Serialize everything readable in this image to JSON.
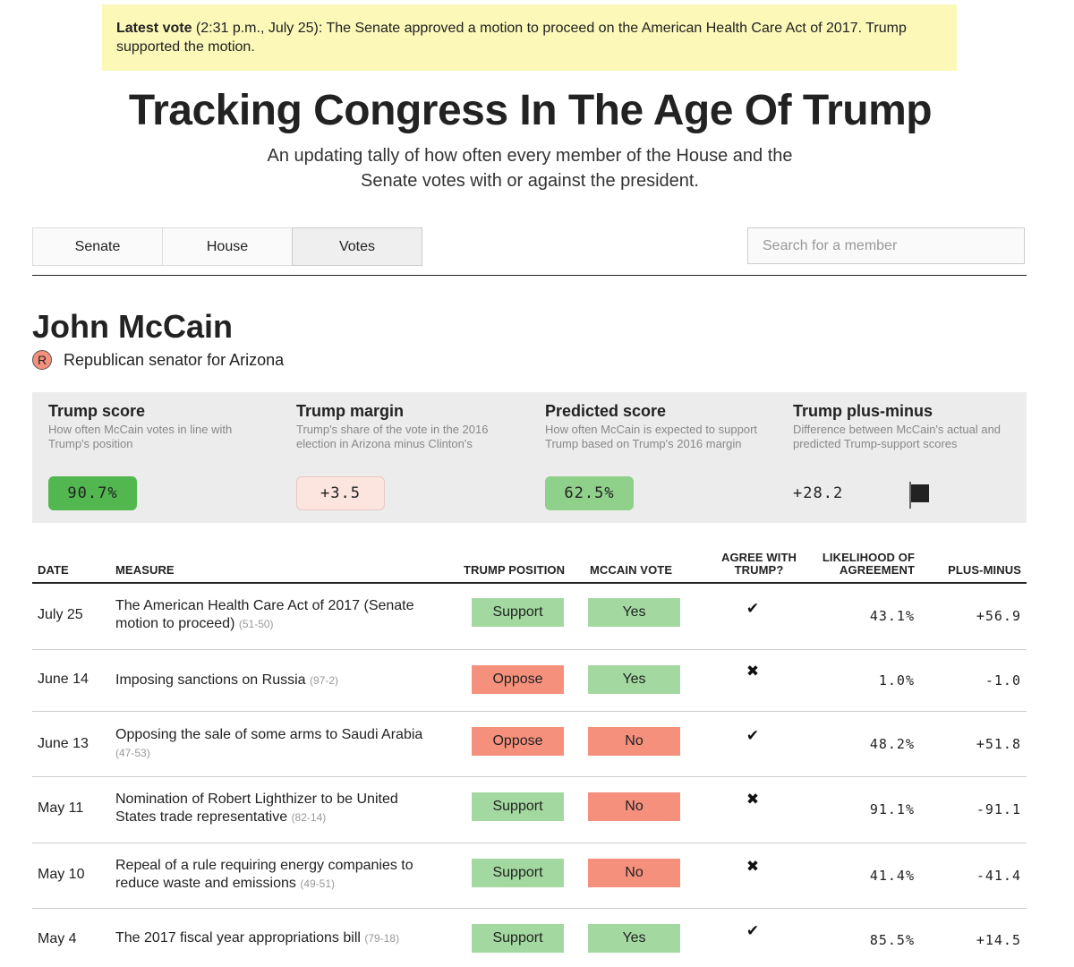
{
  "banner": {
    "label": "Latest vote",
    "text": " (2:31 p.m., July 25): The Senate approved a motion to proceed on the American Health Care Act of 2017. Trump supported the motion."
  },
  "page": {
    "title": "Tracking Congress In The Age Of Trump",
    "subtitle": "An updating tally of how often every member of the House and the Senate votes with or against the president."
  },
  "tabs": [
    {
      "label": "Senate",
      "active": false
    },
    {
      "label": "House",
      "active": false
    },
    {
      "label": "Votes",
      "active": true
    }
  ],
  "search": {
    "placeholder": "Search for a member",
    "value": ""
  },
  "member": {
    "name": "John McCain",
    "party_letter": "R",
    "description": "Republican senator for Arizona"
  },
  "scores": {
    "trump_score": {
      "title": "Trump score",
      "desc": "How often McCain votes in line with Trump's position",
      "value": "90.7%"
    },
    "trump_margin": {
      "title": "Trump margin",
      "desc": "Trump's share of the vote in the 2016 election in Arizona minus Clinton's",
      "value": "+3.5"
    },
    "predicted_score": {
      "title": "Predicted score",
      "desc": "How often McCain is expected to support Trump based on Trump's 2016 margin",
      "value": "62.5%"
    },
    "plus_minus": {
      "title": "Trump plus-minus",
      "desc": "Difference between McCain's actual and predicted Trump-support scores",
      "value": "+28.2"
    }
  },
  "colors": {
    "banner": "#fbf8b8",
    "support_green": "#a3d9a0",
    "oppose_red": "#f5907c",
    "score_green_dark": "#52b74f",
    "score_green_light": "#8fd18a",
    "margin_pink": "#fce4df",
    "panel_gray": "#ececec"
  },
  "table": {
    "headers": {
      "date": "Date",
      "measure": "Measure",
      "trump_position": "Trump position",
      "vote": "McCain vote",
      "agree_line1": "Agree with",
      "agree_line2": "Trump?",
      "likelihood_line1": "Likelihood of",
      "likelihood_line2": "agreement",
      "plus_minus": "Plus-minus"
    },
    "rows": [
      {
        "date": "July 25",
        "measure": "The American Health Care Act of 2017 (Senate motion to proceed)",
        "tally": "(51-50)",
        "trump_position": "Support",
        "vote": "Yes",
        "agree": "✔",
        "likelihood": "43.1%",
        "plus_minus": "+56.9"
      },
      {
        "date": "June 14",
        "measure": "Imposing sanctions on Russia",
        "tally": "(97-2)",
        "trump_position": "Oppose",
        "vote": "Yes",
        "agree": "✖",
        "likelihood": "1.0%",
        "plus_minus": "-1.0"
      },
      {
        "date": "June 13",
        "measure": "Opposing the sale of some arms to Saudi Arabia",
        "tally": "(47-53)",
        "trump_position": "Oppose",
        "vote": "No",
        "agree": "✔",
        "likelihood": "48.2%",
        "plus_minus": "+51.8"
      },
      {
        "date": "May 11",
        "measure": "Nomination of Robert Lighthizer to be United States trade representative",
        "tally": "(82-14)",
        "trump_position": "Support",
        "vote": "No",
        "agree": "✖",
        "likelihood": "91.1%",
        "plus_minus": "-91.1"
      },
      {
        "date": "May 10",
        "measure": "Repeal of a rule requiring energy companies to reduce waste and emissions",
        "tally": "(49-51)",
        "trump_position": "Support",
        "vote": "No",
        "agree": "✖",
        "likelihood": "41.4%",
        "plus_minus": "-41.4"
      },
      {
        "date": "May 4",
        "measure": "The 2017 fiscal year appropriations bill",
        "tally": "(79-18)",
        "trump_position": "Support",
        "vote": "Yes",
        "agree": "✔",
        "likelihood": "85.5%",
        "plus_minus": "+14.5"
      }
    ]
  }
}
